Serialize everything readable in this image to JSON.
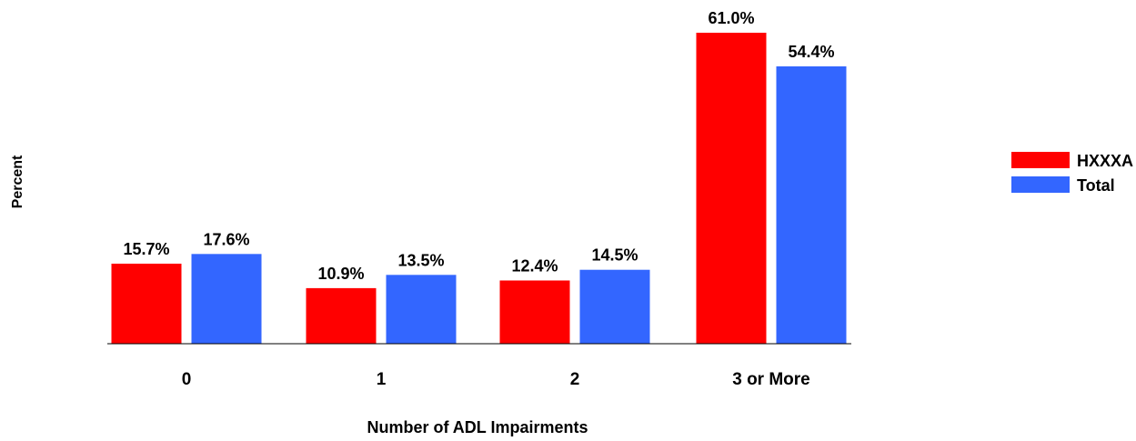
{
  "chart_data": {
    "type": "bar",
    "xlabel": "Number of ADL Impairments",
    "ylabel": "Percent",
    "categories": [
      "0",
      "1",
      "2",
      "3 or More"
    ],
    "series": [
      {
        "name": "HXXXA",
        "color": "#ff0000",
        "values": [
          15.7,
          10.9,
          12.4,
          61.0
        ],
        "labels": [
          "15.7%",
          "10.9%",
          "12.4%",
          "61.0%"
        ]
      },
      {
        "name": "Total",
        "color": "#3366ff",
        "values": [
          17.6,
          13.5,
          14.5,
          54.4
        ],
        "labels": [
          "17.6%",
          "13.5%",
          "14.5%",
          "54.4%"
        ]
      }
    ],
    "ylim": [
      0,
      61
    ],
    "grid": false,
    "legend": "right"
  }
}
